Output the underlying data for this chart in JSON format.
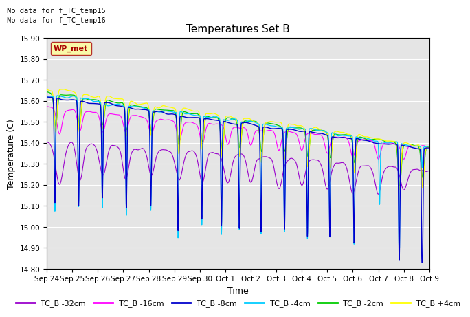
{
  "title": "Temperatures Set B",
  "xlabel": "Time",
  "ylabel": "Temperature (C)",
  "ylim": [
    14.8,
    15.9
  ],
  "yticks": [
    14.8,
    14.9,
    15.0,
    15.1,
    15.2,
    15.3,
    15.4,
    15.5,
    15.6,
    15.7,
    15.8,
    15.9
  ],
  "xtick_labels": [
    "Sep 24",
    "Sep 25",
    "Sep 26",
    "Sep 27",
    "Sep 28",
    "Sep 29",
    "Sep 30",
    "Oct 1",
    "Oct 2",
    "Oct 3",
    "Oct 4",
    "Oct 5",
    "Oct 6",
    "Oct 7",
    "Oct 8",
    "Oct 9"
  ],
  "annotations": [
    "No data for f_TC_temp15",
    "No data for f_TC_temp16"
  ],
  "legend_label": "WP_met",
  "series_labels": [
    "TC_B -32cm",
    "TC_B -16cm",
    "TC_B -8cm",
    "TC_B -4cm",
    "TC_B -2cm",
    "TC_B +4cm"
  ],
  "series_colors": [
    "#9900cc",
    "#ff00ff",
    "#0000cc",
    "#00ccff",
    "#00cc00",
    "#ffff00"
  ],
  "background_color": "#e8e8e8",
  "plot_bg_color": "#e5e5e5",
  "n_points": 2160,
  "seed": 42
}
